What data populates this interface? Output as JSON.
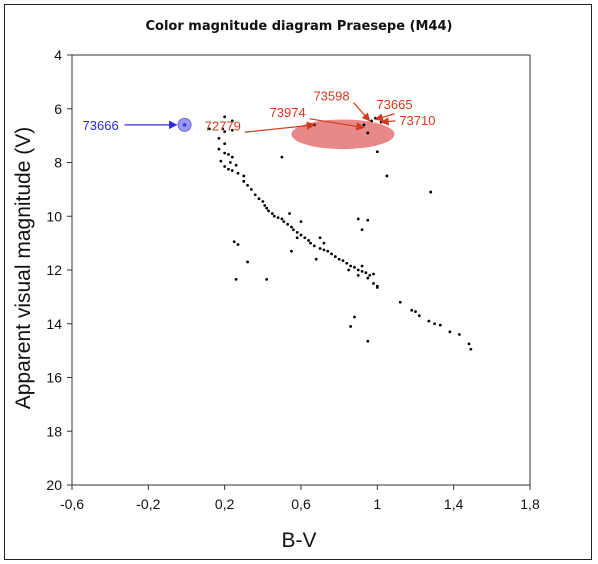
{
  "chart_data": {
    "type": "scatter",
    "title": "Color magnitude diagram Praesepe  (M44)",
    "xlabel": "B-V",
    "ylabel": "Apparent visual magnitude (V)",
    "xlim": [
      -0.6,
      1.8
    ],
    "ylim": [
      4,
      20
    ],
    "y_inverted": true,
    "grid": false,
    "x_ticks": [
      "-0,6",
      "-0,2",
      "0,2",
      "0,6",
      "1",
      "1,4",
      "1,8"
    ],
    "x_tick_values": [
      -0.6,
      -0.2,
      0.2,
      0.6,
      1.0,
      1.4,
      1.8
    ],
    "y_ticks": [
      "4",
      "6",
      "8",
      "10",
      "12",
      "14",
      "16",
      "18",
      "20"
    ],
    "y_tick_values": [
      4,
      6,
      8,
      10,
      12,
      14,
      16,
      18,
      20
    ],
    "point_color": "#000000",
    "points": [
      [
        0.12,
        6.75
      ],
      [
        0.2,
        6.3
      ],
      [
        0.24,
        6.45
      ],
      [
        0.19,
        6.75
      ],
      [
        0.2,
        6.85
      ],
      [
        0.24,
        6.8
      ],
      [
        0.17,
        7.1
      ],
      [
        0.2,
        7.3
      ],
      [
        0.17,
        7.5
      ],
      [
        0.2,
        7.65
      ],
      [
        0.22,
        7.7
      ],
      [
        0.24,
        7.8
      ],
      [
        0.18,
        7.95
      ],
      [
        0.23,
        8.0
      ],
      [
        0.2,
        8.15
      ],
      [
        0.22,
        8.25
      ],
      [
        0.24,
        8.3
      ],
      [
        0.26,
        8.1
      ],
      [
        0.27,
        8.4
      ],
      [
        0.3,
        8.5
      ],
      [
        0.3,
        8.7
      ],
      [
        0.32,
        8.85
      ],
      [
        0.34,
        9.0
      ],
      [
        0.36,
        9.2
      ],
      [
        0.38,
        9.35
      ],
      [
        0.4,
        9.45
      ],
      [
        0.41,
        9.6
      ],
      [
        0.42,
        9.7
      ],
      [
        0.43,
        9.8
      ],
      [
        0.45,
        9.9
      ],
      [
        0.46,
        10.0
      ],
      [
        0.48,
        10.05
      ],
      [
        0.5,
        10.1
      ],
      [
        0.51,
        10.2
      ],
      [
        0.53,
        10.3
      ],
      [
        0.55,
        10.4
      ],
      [
        0.5,
        7.8
      ],
      [
        0.56,
        10.5
      ],
      [
        0.58,
        10.6
      ],
      [
        0.6,
        10.7
      ],
      [
        0.6,
        10.2
      ],
      [
        0.62,
        10.8
      ],
      [
        0.64,
        10.9
      ],
      [
        0.65,
        11.0
      ],
      [
        0.67,
        11.1
      ],
      [
        0.7,
        11.2
      ],
      [
        0.72,
        11.25
      ],
      [
        0.74,
        11.3
      ],
      [
        0.76,
        11.4
      ],
      [
        0.78,
        11.5
      ],
      [
        0.8,
        11.6
      ],
      [
        0.82,
        11.65
      ],
      [
        0.84,
        11.75
      ],
      [
        0.86,
        11.85
      ],
      [
        0.88,
        11.9
      ],
      [
        0.9,
        12.0
      ],
      [
        0.92,
        12.05
      ],
      [
        0.94,
        12.1
      ],
      [
        0.96,
        12.2
      ],
      [
        0.98,
        12.15
      ],
      [
        0.9,
        12.2
      ],
      [
        0.95,
        12.3
      ],
      [
        1.0,
        12.6
      ],
      [
        0.98,
        12.5
      ],
      [
        1.0,
        12.65
      ],
      [
        0.9,
        10.1
      ],
      [
        0.95,
        10.15
      ],
      [
        0.92,
        10.5
      ],
      [
        1.0,
        7.6
      ],
      [
        1.05,
        8.5
      ],
      [
        1.28,
        9.1
      ],
      [
        0.25,
        10.95
      ],
      [
        0.27,
        11.05
      ],
      [
        0.32,
        11.7
      ],
      [
        0.26,
        12.35
      ],
      [
        0.42,
        12.35
      ],
      [
        0.55,
        11.3
      ],
      [
        0.58,
        10.8
      ],
      [
        0.54,
        9.9
      ],
      [
        0.68,
        11.6
      ],
      [
        0.7,
        10.8
      ],
      [
        0.72,
        11.0
      ],
      [
        1.12,
        13.2
      ],
      [
        1.18,
        13.5
      ],
      [
        1.2,
        13.55
      ],
      [
        1.22,
        13.7
      ],
      [
        1.27,
        13.9
      ],
      [
        1.3,
        14.0
      ],
      [
        1.33,
        14.05
      ],
      [
        1.38,
        14.3
      ],
      [
        1.43,
        14.4
      ],
      [
        1.48,
        14.75
      ],
      [
        1.49,
        14.95
      ],
      [
        0.88,
        13.75
      ],
      [
        0.86,
        14.1
      ],
      [
        0.95,
        14.65
      ],
      [
        0.97,
        6.45
      ],
      [
        0.99,
        6.35
      ],
      [
        1.02,
        6.5
      ],
      [
        0.93,
        6.6
      ],
      [
        0.95,
        6.9
      ],
      [
        0.67,
        6.6
      ],
      [
        0.92,
        11.85
      ],
      [
        0.85,
        12.0
      ]
    ],
    "highlighted_star": {
      "label": "73666",
      "bv": -0.01,
      "v": 6.6,
      "color": "#3a3ae0"
    },
    "red_region": {
      "bv_center": 0.82,
      "v_center": 6.95,
      "bv_halfwidth": 0.27,
      "v_halfheight": 0.55,
      "color": "#e06060"
    },
    "annotations": [
      {
        "label": "73598",
        "text_bv": 0.76,
        "text_v": 5.7,
        "target_bv": 0.96,
        "target_v": 6.45
      },
      {
        "label": "73974",
        "text_bv": 0.53,
        "text_v": 6.3,
        "target_bv": 0.93,
        "target_v": 6.7
      },
      {
        "label": "72779",
        "text_bv": 0.19,
        "text_v": 6.8,
        "target_bv": 0.67,
        "target_v": 6.6
      },
      {
        "label": "73665",
        "text_bv": 1.09,
        "text_v": 6.0,
        "target_bv": 0.99,
        "target_v": 6.4
      },
      {
        "label": "73710",
        "text_bv": 1.21,
        "text_v": 6.6,
        "target_bv": 1.02,
        "target_v": 6.5
      }
    ]
  }
}
